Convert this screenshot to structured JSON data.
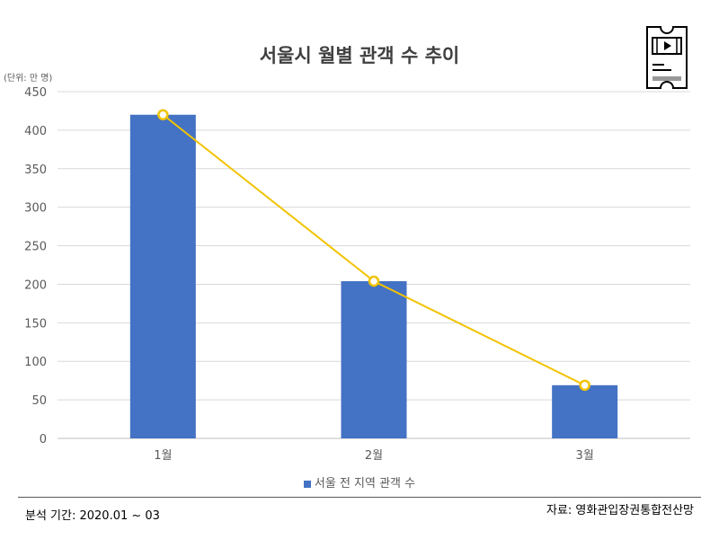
{
  "unit_label": "(단위: 만 명)",
  "footer": {
    "period": "분석 기간: 2020.01 ~ 03",
    "source": "자료: 영화관입장권통합전산망"
  },
  "icons": {
    "corner": "movie-ticket-icon"
  },
  "colors": {
    "bar": "#4472C4",
    "line": "#F2C300",
    "grid": "#D9D9D9"
  },
  "chart_data": {
    "type": "bar",
    "title": "서울시 월별 관객 수 추이",
    "categories": [
      "1월",
      "2월",
      "3월"
    ],
    "series": [
      {
        "name": "서울 전 지역 관객 수",
        "values": [
          420,
          204,
          69
        ]
      }
    ],
    "overlay_line_values": [
      420,
      204,
      69
    ],
    "ylim": [
      0,
      450
    ],
    "yticks": [
      0,
      50,
      100,
      150,
      200,
      250,
      300,
      350,
      400,
      450
    ],
    "grid": true,
    "legend": "bottom"
  }
}
